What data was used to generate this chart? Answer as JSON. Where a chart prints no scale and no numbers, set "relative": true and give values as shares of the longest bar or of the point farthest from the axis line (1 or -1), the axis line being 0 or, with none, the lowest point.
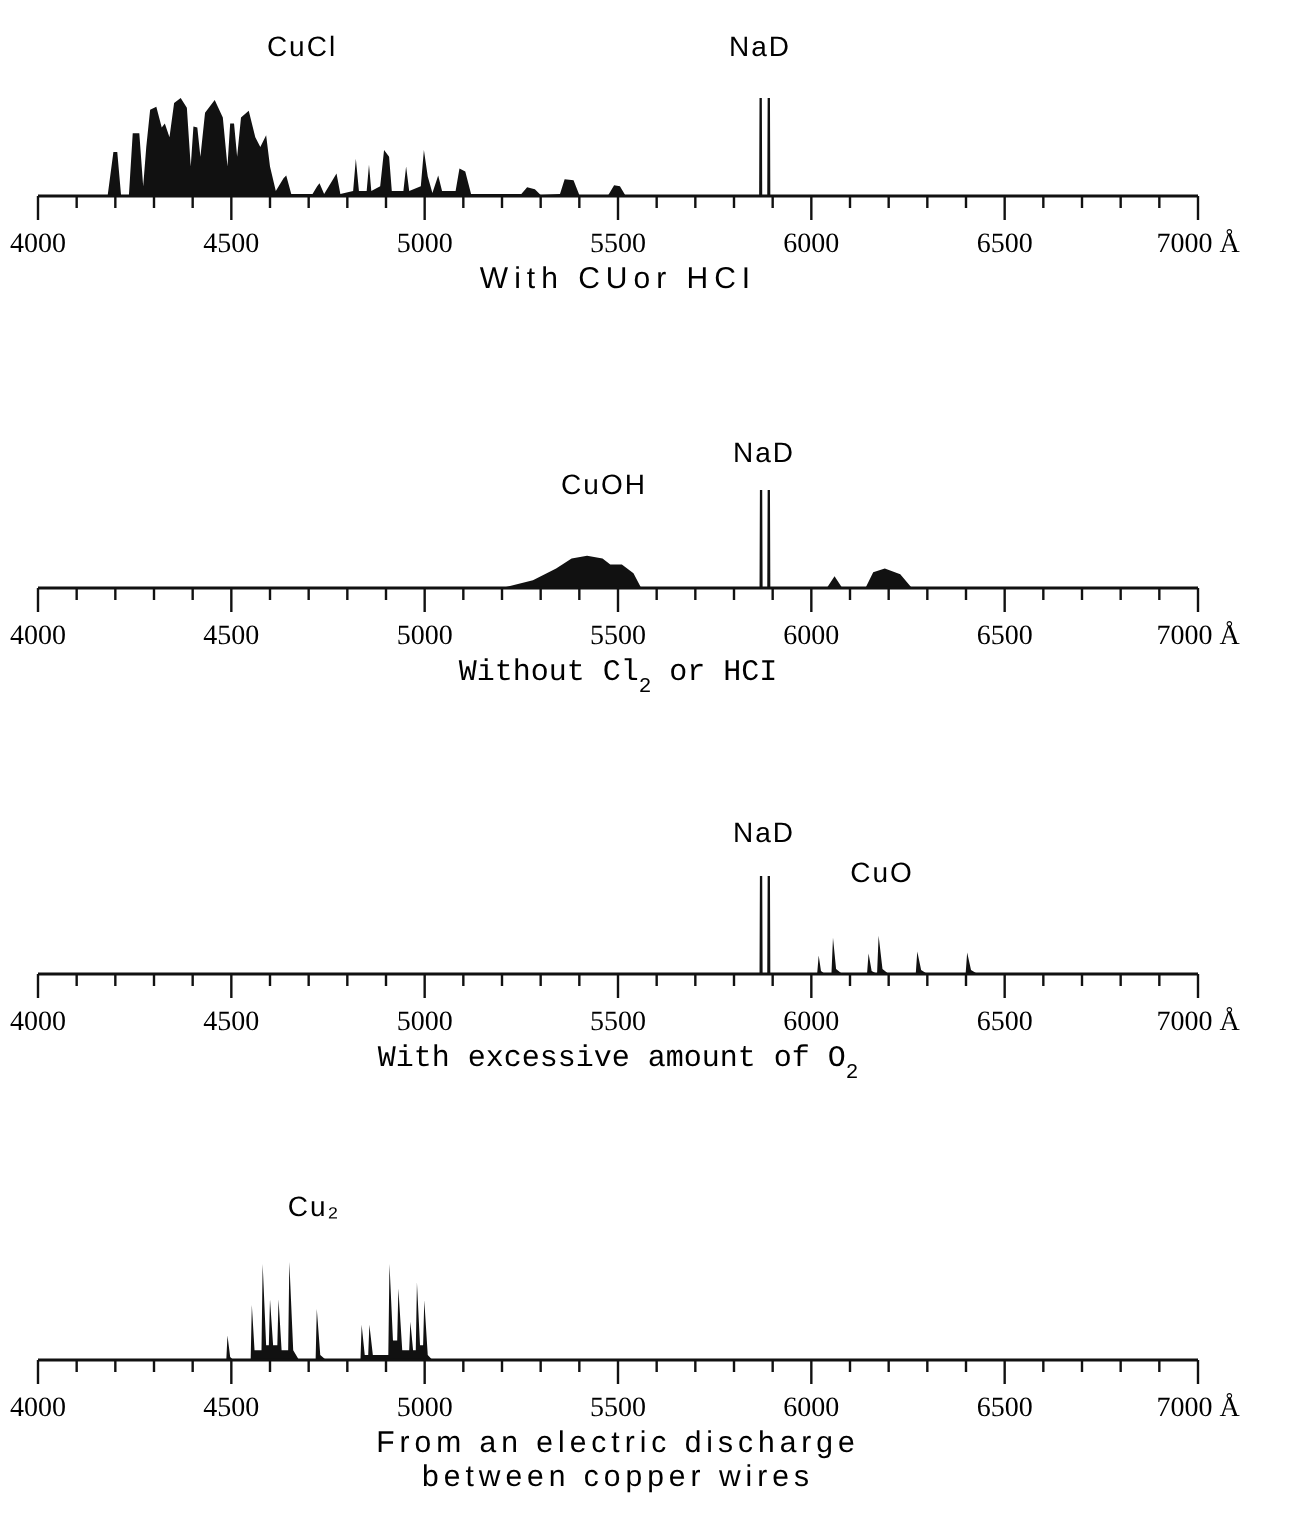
{
  "chart_data": [
    {
      "type": "area",
      "relative": true,
      "xlabel": "With CUor HCI",
      "xlim": [
        4000,
        7000
      ],
      "xticks": [
        4000,
        {
          "value": 4100,
          "label": null
        },
        {
          "value": 4200,
          "label": null
        },
        {
          "value": 4300,
          "label": null
        },
        {
          "value": 4400,
          "label": null
        },
        4500,
        {
          "value": 4600,
          "label": null
        },
        {
          "value": 4700,
          "label": null
        },
        {
          "value": 4800,
          "label": null
        },
        {
          "value": 4900,
          "label": null
        },
        5000,
        {
          "value": 5100,
          "label": null
        },
        {
          "value": 5200,
          "label": null
        },
        {
          "value": 5300,
          "label": null
        },
        {
          "value": 5400,
          "label": null
        },
        5500,
        {
          "value": 5600,
          "label": null
        },
        {
          "value": 5700,
          "label": null
        },
        {
          "value": 5800,
          "label": null
        },
        {
          "value": 5900,
          "label": null
        },
        6000,
        {
          "value": 6100,
          "label": null
        },
        {
          "value": 6200,
          "label": null
        },
        {
          "value": 6300,
          "label": null
        },
        {
          "value": 6400,
          "label": null
        },
        6500,
        {
          "value": 6600,
          "label": null
        },
        {
          "value": 6700,
          "label": null
        },
        {
          "value": 6800,
          "label": null
        },
        {
          "value": 6900,
          "label": null
        },
        {
          "value": 7000,
          "label": "7000 Å"
        }
      ],
      "annotations": [
        "CuCl",
        "NaD"
      ],
      "x": [
        4000,
        4180,
        4195,
        4205,
        4215,
        4235,
        4245,
        4262,
        4272,
        4280,
        4290,
        4306,
        4320,
        4328,
        4340,
        4352,
        4369,
        4385,
        4395,
        4402,
        4412,
        4420,
        4432,
        4457,
        4478,
        4490,
        4497,
        4507,
        4515,
        4525,
        4545,
        4562,
        4575,
        4590,
        4600,
        4615,
        4635,
        4642,
        4655,
        4710,
        4722,
        4728,
        4740,
        4760,
        4772,
        4782,
        4815,
        4822,
        4830,
        4850,
        4856,
        4862,
        4885,
        4895,
        4908,
        4915,
        4945,
        4952,
        4960,
        4990,
        4998,
        5008,
        5020,
        5035,
        5045,
        5080,
        5090,
        5105,
        5120,
        5250,
        5265,
        5285,
        5300,
        5350,
        5362,
        5385,
        5400,
        5475,
        5490,
        5505,
        5520,
        5865,
        5866,
        5872,
        5873,
        5886,
        5887,
        5893,
        5894,
        7000
      ],
      "series": [
        {
          "color": "#111111",
          "values": [
            0,
            0,
            0.45,
            0.45,
            0,
            0,
            0.64,
            0.64,
            0.1,
            0.5,
            0.88,
            0.91,
            0.7,
            0.74,
            0.6,
            0.95,
            1.0,
            0.9,
            0.3,
            0.71,
            0.7,
            0.4,
            0.85,
            0.98,
            0.8,
            0.3,
            0.74,
            0.74,
            0.4,
            0.8,
            0.87,
            0.6,
            0.5,
            0.62,
            0.3,
            0.05,
            0.18,
            0.21,
            0.02,
            0.02,
            0.1,
            0.13,
            0.02,
            0.15,
            0.23,
            0.02,
            0.05,
            0.38,
            0.05,
            0.05,
            0.32,
            0.05,
            0.1,
            0.47,
            0.4,
            0.05,
            0.05,
            0.3,
            0.05,
            0.1,
            0.47,
            0.2,
            0.03,
            0.21,
            0.05,
            0.05,
            0.28,
            0.25,
            0.02,
            0.02,
            0.09,
            0.07,
            0.01,
            0.02,
            0.17,
            0.16,
            0.01,
            0.01,
            0.11,
            0.1,
            0,
            0,
            1,
            1,
            0,
            0,
            1,
            1,
            0,
            0
          ]
        }
      ]
    },
    {
      "type": "area",
      "relative": true,
      "xlabel": "Without Cl$_{2}$ or HCI",
      "xlim": [
        4000,
        7000
      ],
      "xticks": [
        4000,
        {
          "value": 4100,
          "label": null
        },
        {
          "value": 4200,
          "label": null
        },
        {
          "value": 4300,
          "label": null
        },
        {
          "value": 4400,
          "label": null
        },
        4500,
        {
          "value": 4600,
          "label": null
        },
        {
          "value": 4700,
          "label": null
        },
        {
          "value": 4800,
          "label": null
        },
        {
          "value": 4900,
          "label": null
        },
        5000,
        {
          "value": 5100,
          "label": null
        },
        {
          "value": 5200,
          "label": null
        },
        {
          "value": 5300,
          "label": null
        },
        {
          "value": 5400,
          "label": null
        },
        5500,
        {
          "value": 5600,
          "label": null
        },
        {
          "value": 5700,
          "label": null
        },
        {
          "value": 5800,
          "label": null
        },
        {
          "value": 5900,
          "label": null
        },
        6000,
        {
          "value": 6100,
          "label": null
        },
        {
          "value": 6200,
          "label": null
        },
        {
          "value": 6300,
          "label": null
        },
        {
          "value": 6400,
          "label": null
        },
        6500,
        {
          "value": 6600,
          "label": null
        },
        {
          "value": 6700,
          "label": null
        },
        {
          "value": 6800,
          "label": null
        },
        {
          "value": 6900,
          "label": null
        },
        {
          "value": 7000,
          "label": "7000 Å"
        }
      ],
      "annotations": [
        "CuOH",
        "NaD"
      ],
      "x": [
        4000,
        5200,
        5280,
        5340,
        5380,
        5420,
        5460,
        5480,
        5510,
        5540,
        5560,
        5866,
        5867,
        5873,
        5874,
        5886,
        5887,
        5893,
        5894,
        6040,
        6060,
        6080,
        6140,
        6160,
        6190,
        6230,
        6260,
        7000
      ],
      "series": [
        {
          "color": "#111111",
          "values": [
            0,
            0,
            0.08,
            0.2,
            0.3,
            0.33,
            0.3,
            0.24,
            0.24,
            0.15,
            0,
            0,
            1,
            1,
            0,
            0,
            1,
            1,
            0,
            0,
            0.12,
            0,
            0,
            0.16,
            0.2,
            0.14,
            0,
            0
          ]
        }
      ]
    },
    {
      "type": "area",
      "relative": true,
      "xlabel": "With excessive amount of O$_{2}$",
      "xlim": [
        4000,
        7000
      ],
      "xticks": [
        4000,
        {
          "value": 4100,
          "label": null
        },
        {
          "value": 4200,
          "label": null
        },
        {
          "value": 4300,
          "label": null
        },
        {
          "value": 4400,
          "label": null
        },
        4500,
        {
          "value": 4600,
          "label": null
        },
        {
          "value": 4700,
          "label": null
        },
        {
          "value": 4800,
          "label": null
        },
        {
          "value": 4900,
          "label": null
        },
        5000,
        {
          "value": 5100,
          "label": null
        },
        {
          "value": 5200,
          "label": null
        },
        {
          "value": 5300,
          "label": null
        },
        {
          "value": 5400,
          "label": null
        },
        5500,
        {
          "value": 5600,
          "label": null
        },
        {
          "value": 5700,
          "label": null
        },
        {
          "value": 5800,
          "label": null
        },
        {
          "value": 5900,
          "label": null
        },
        6000,
        {
          "value": 6100,
          "label": null
        },
        {
          "value": 6200,
          "label": null
        },
        {
          "value": 6300,
          "label": null
        },
        {
          "value": 6400,
          "label": null
        },
        6500,
        {
          "value": 6600,
          "label": null
        },
        {
          "value": 6700,
          "label": null
        },
        {
          "value": 6800,
          "label": null
        },
        {
          "value": 6900,
          "label": null
        },
        {
          "value": 7000,
          "label": "7000 Å"
        }
      ],
      "annotations": [
        "NaD",
        "CuO"
      ],
      "x": [
        4000,
        5866,
        5867,
        5873,
        5874,
        5886,
        5887,
        5893,
        5894,
        6015,
        6019,
        6025,
        6035,
        6052,
        6056,
        6064,
        6080,
        6144,
        6148,
        6156,
        6170,
        6174,
        6184,
        6200,
        6270,
        6274,
        6284,
        6300,
        6399,
        6403,
        6413,
        6430,
        7000
      ],
      "series": [
        {
          "color": "#111111",
          "values": [
            0,
            0,
            1,
            1,
            0,
            0,
            1,
            1,
            0,
            0,
            0.19,
            0.03,
            0,
            0,
            0.37,
            0.05,
            0,
            0,
            0.21,
            0.03,
            0,
            0.39,
            0.05,
            0,
            0,
            0.23,
            0.04,
            0,
            0,
            0.22,
            0.04,
            0,
            0
          ]
        }
      ]
    },
    {
      "type": "area",
      "relative": true,
      "xlabel": "From an electric discharge between copper wires",
      "xlim": [
        4000,
        7000
      ],
      "xticks": [
        4000,
        {
          "value": 4100,
          "label": null
        },
        {
          "value": 4200,
          "label": null
        },
        {
          "value": 4300,
          "label": null
        },
        {
          "value": 4400,
          "label": null
        },
        4500,
        {
          "value": 4600,
          "label": null
        },
        {
          "value": 4700,
          "label": null
        },
        {
          "value": 4800,
          "label": null
        },
        {
          "value": 4900,
          "label": null
        },
        5000,
        {
          "value": 5100,
          "label": null
        },
        {
          "value": 5200,
          "label": null
        },
        {
          "value": 5300,
          "label": null
        },
        {
          "value": 5400,
          "label": null
        },
        5500,
        {
          "value": 5600,
          "label": null
        },
        {
          "value": 5700,
          "label": null
        },
        {
          "value": 5800,
          "label": null
        },
        {
          "value": 5900,
          "label": null
        },
        6000,
        {
          "value": 6100,
          "label": null
        },
        {
          "value": 6200,
          "label": null
        },
        {
          "value": 6300,
          "label": null
        },
        {
          "value": 6400,
          "label": null
        },
        6500,
        {
          "value": 6600,
          "label": null
        },
        {
          "value": 6700,
          "label": null
        },
        {
          "value": 6800,
          "label": null
        },
        {
          "value": 6900,
          "label": null
        },
        {
          "value": 7000,
          "label": "7000 Å"
        }
      ],
      "annotations": [
        "Cu₂"
      ],
      "x": [
        4000,
        4487,
        4490,
        4497,
        4505,
        4550,
        4553,
        4560,
        4578,
        4581,
        4590,
        4597,
        4600,
        4608,
        4619,
        4622,
        4630,
        4647,
        4650,
        4660,
        4675,
        4718,
        4721,
        4730,
        4745,
        4834,
        4837,
        4845,
        4854,
        4857,
        4866,
        4906,
        4909,
        4918,
        4929,
        4932,
        4942,
        4960,
        4963,
        4970,
        4977,
        4980,
        4988,
        4996,
        4999,
        5008,
        5020,
        7000
      ],
      "series": [
        {
          "color": "#111111",
          "values": [
            0,
            0,
            0.25,
            0.03,
            0,
            0,
            0.56,
            0.1,
            0.1,
            0.98,
            0.15,
            0.15,
            0.62,
            0.15,
            0.15,
            0.62,
            0.1,
            0.1,
            1.0,
            0.1,
            0,
            0,
            0.52,
            0.05,
            0,
            0,
            0.36,
            0.05,
            0.05,
            0.36,
            0.05,
            0.05,
            0.98,
            0.2,
            0.2,
            0.73,
            0.1,
            0.1,
            0.39,
            0.1,
            0.1,
            0.79,
            0.15,
            0.15,
            0.61,
            0.05,
            0,
            0
          ]
        }
      ]
    }
  ]
}
